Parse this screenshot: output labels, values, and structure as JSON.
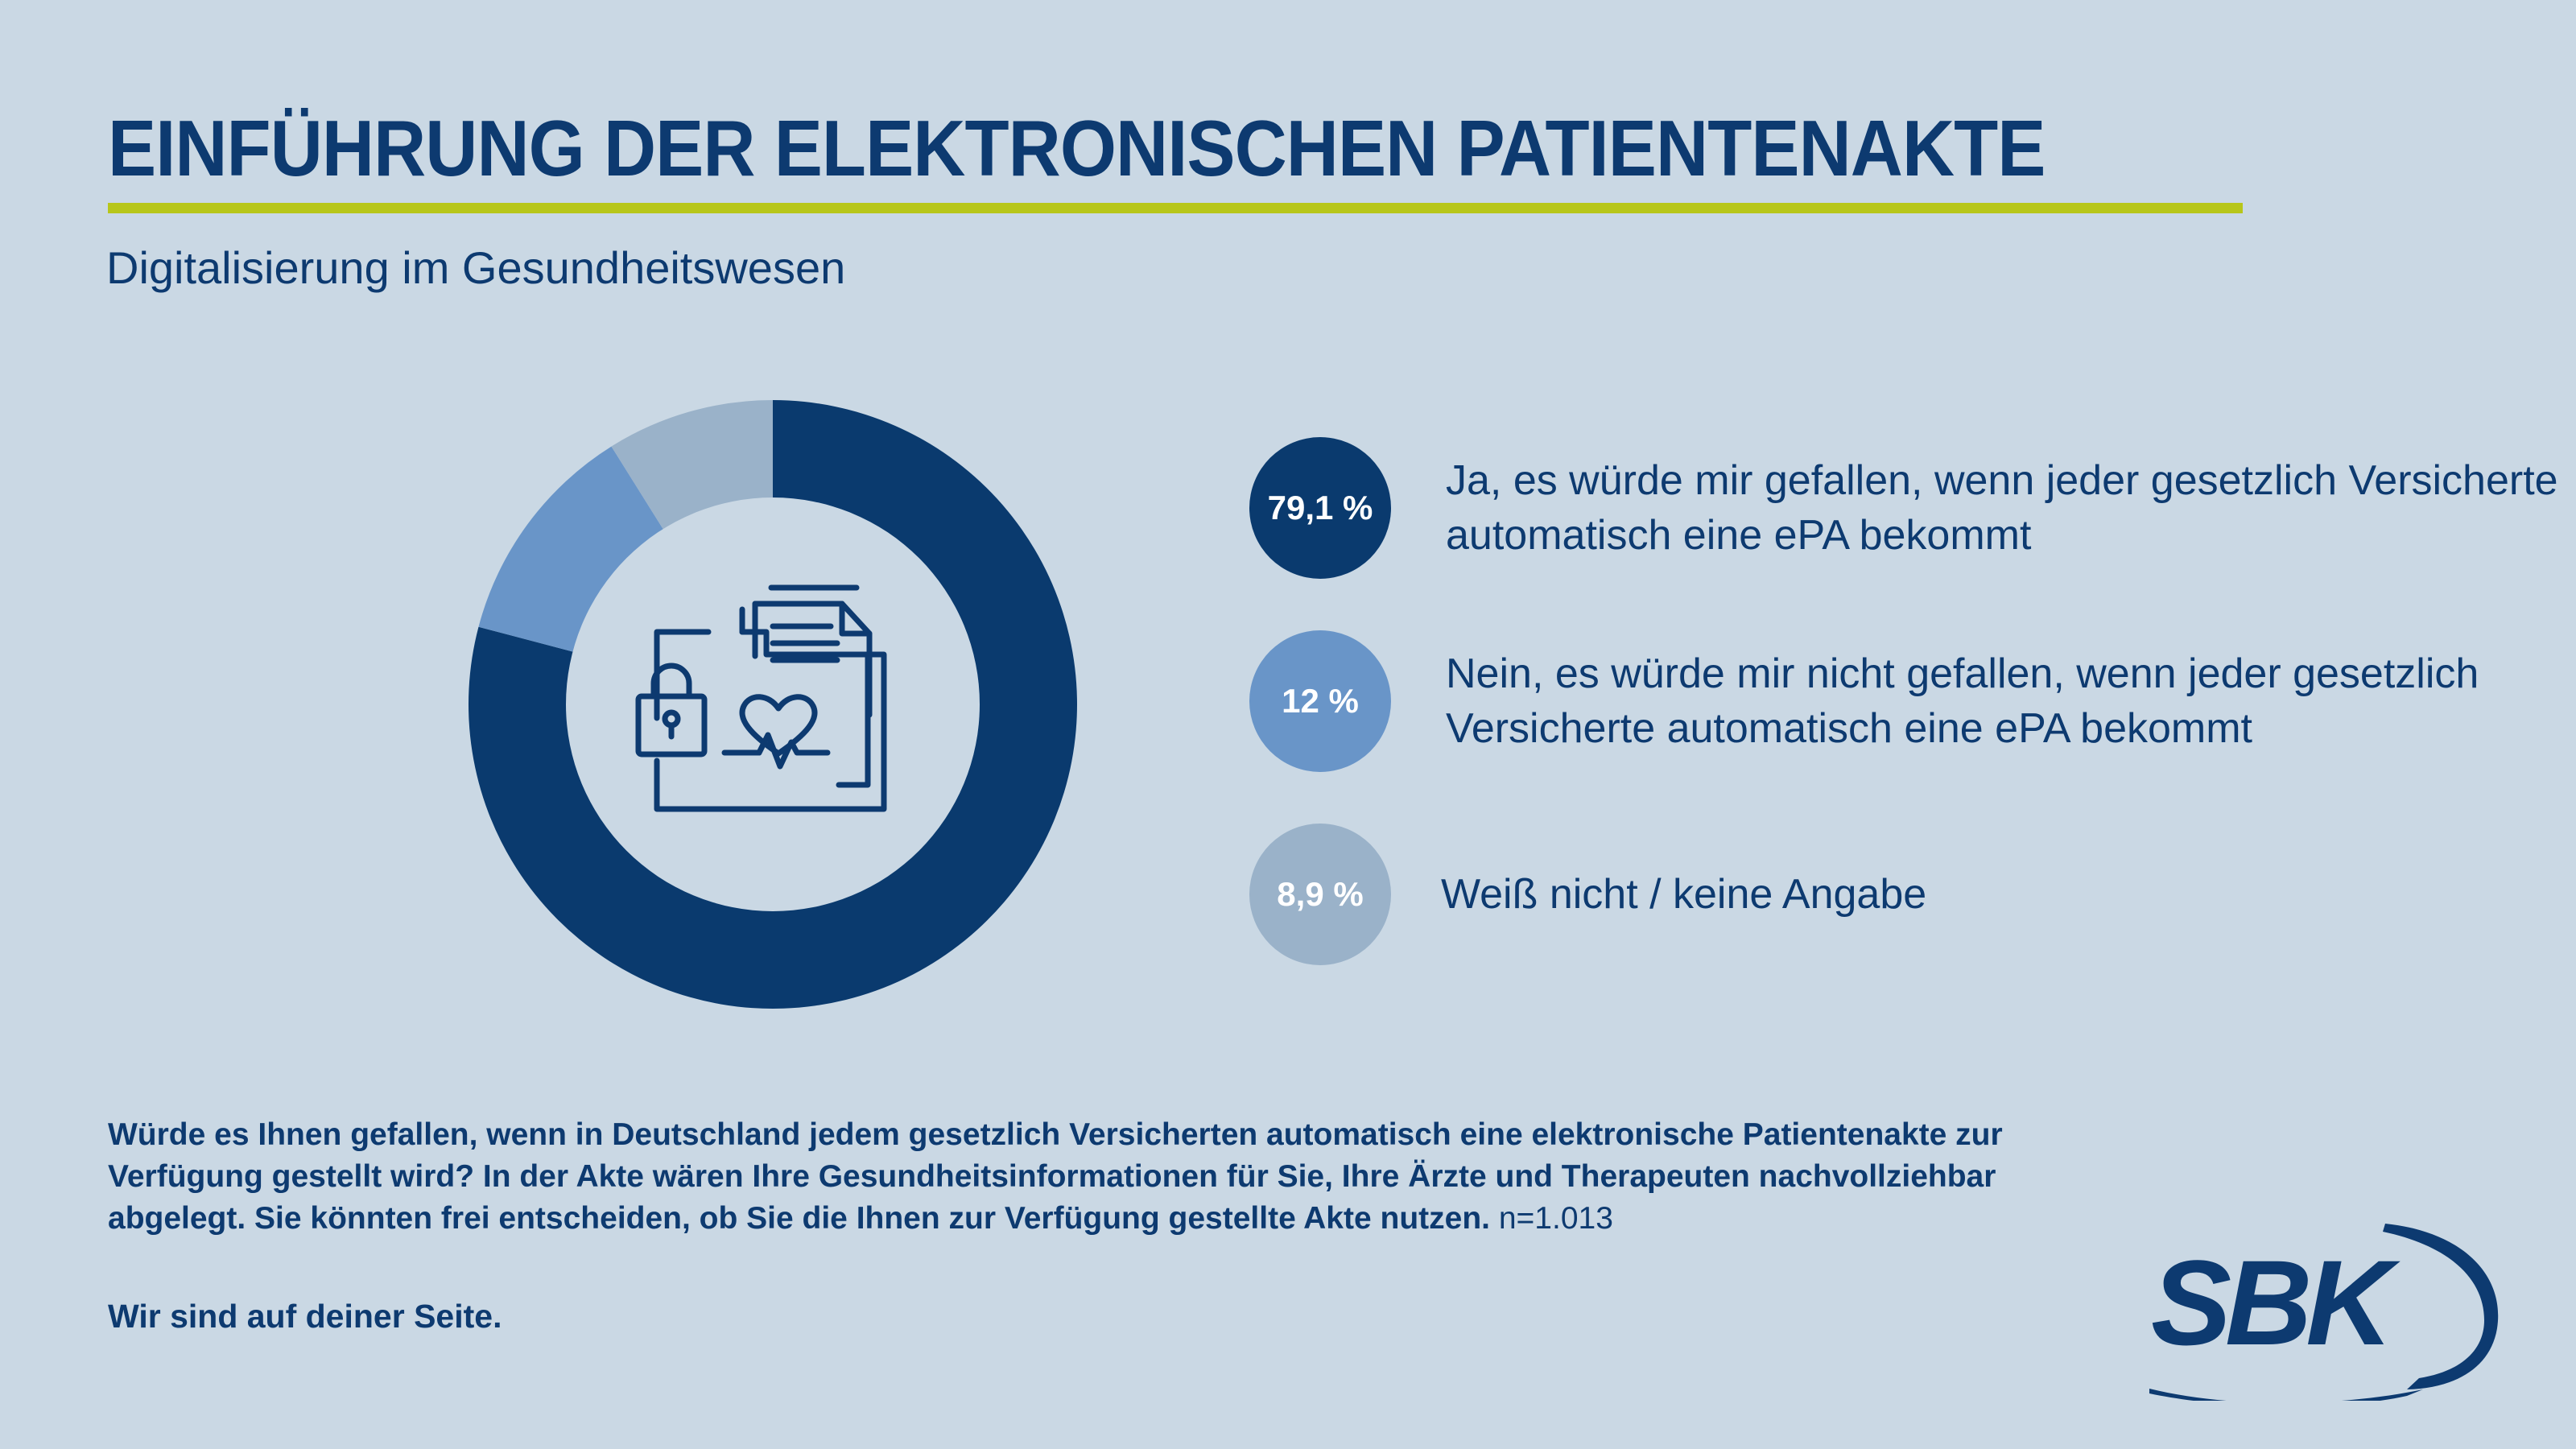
{
  "header": {
    "title": "EINFÜHRUNG DER ELEKTRONISCHEN PATIENTENAKTE",
    "subtitle": "Digitalisierung im Gesundheitswesen"
  },
  "chart_data": {
    "type": "pie",
    "title": "EINFÜHRUNG DER ELEKTRONISCHEN PATIENTENAKTE",
    "subtitle": "Digitalisierung im Gesundheitswesen",
    "unit": "%",
    "series": [
      {
        "name": "Ja",
        "value": 79.1,
        "label": "79,1 %",
        "text": "Ja, es würde mir gefallen, wenn jeder gesetzlich Versicherte automatisch eine ePA bekommt",
        "color": "#0a3a6e"
      },
      {
        "name": "Nein",
        "value": 12,
        "label": "12 %",
        "text": "Nein, es würde mir nicht gefallen, wenn jeder gesetzlich Versicherte automatisch eine ePA bekommt",
        "color": "#6995c8"
      },
      {
        "name": "Weiß nicht",
        "value": 8.9,
        "label": "8,9 %",
        "text": "Weiß nicht / keine Angabe",
        "color": "#9ab2c9"
      }
    ]
  },
  "center_icon": "patient-file-lock-heart-icon",
  "footer": {
    "question": "Würde es Ihnen gefallen, wenn in Deutschland jedem gesetzlich Versicherten automatisch eine elektronische Patientenakte zur Verfügung gestellt wird? In der Akte wären Ihre Gesundheitsinformationen für Sie, Ihre Ärzte und Therapeuten nachvollziehbar abgelegt. Sie könnten frei entscheiden, ob Sie die Ihnen zur Verfügung gestellte Akte nutzen.",
    "sample_size": "n=1.013",
    "slogan": "Wir sind auf deiner Seite."
  },
  "brand": {
    "logo_text": "SBK",
    "color": "#0d3a70",
    "accent": "#b7c61a"
  }
}
